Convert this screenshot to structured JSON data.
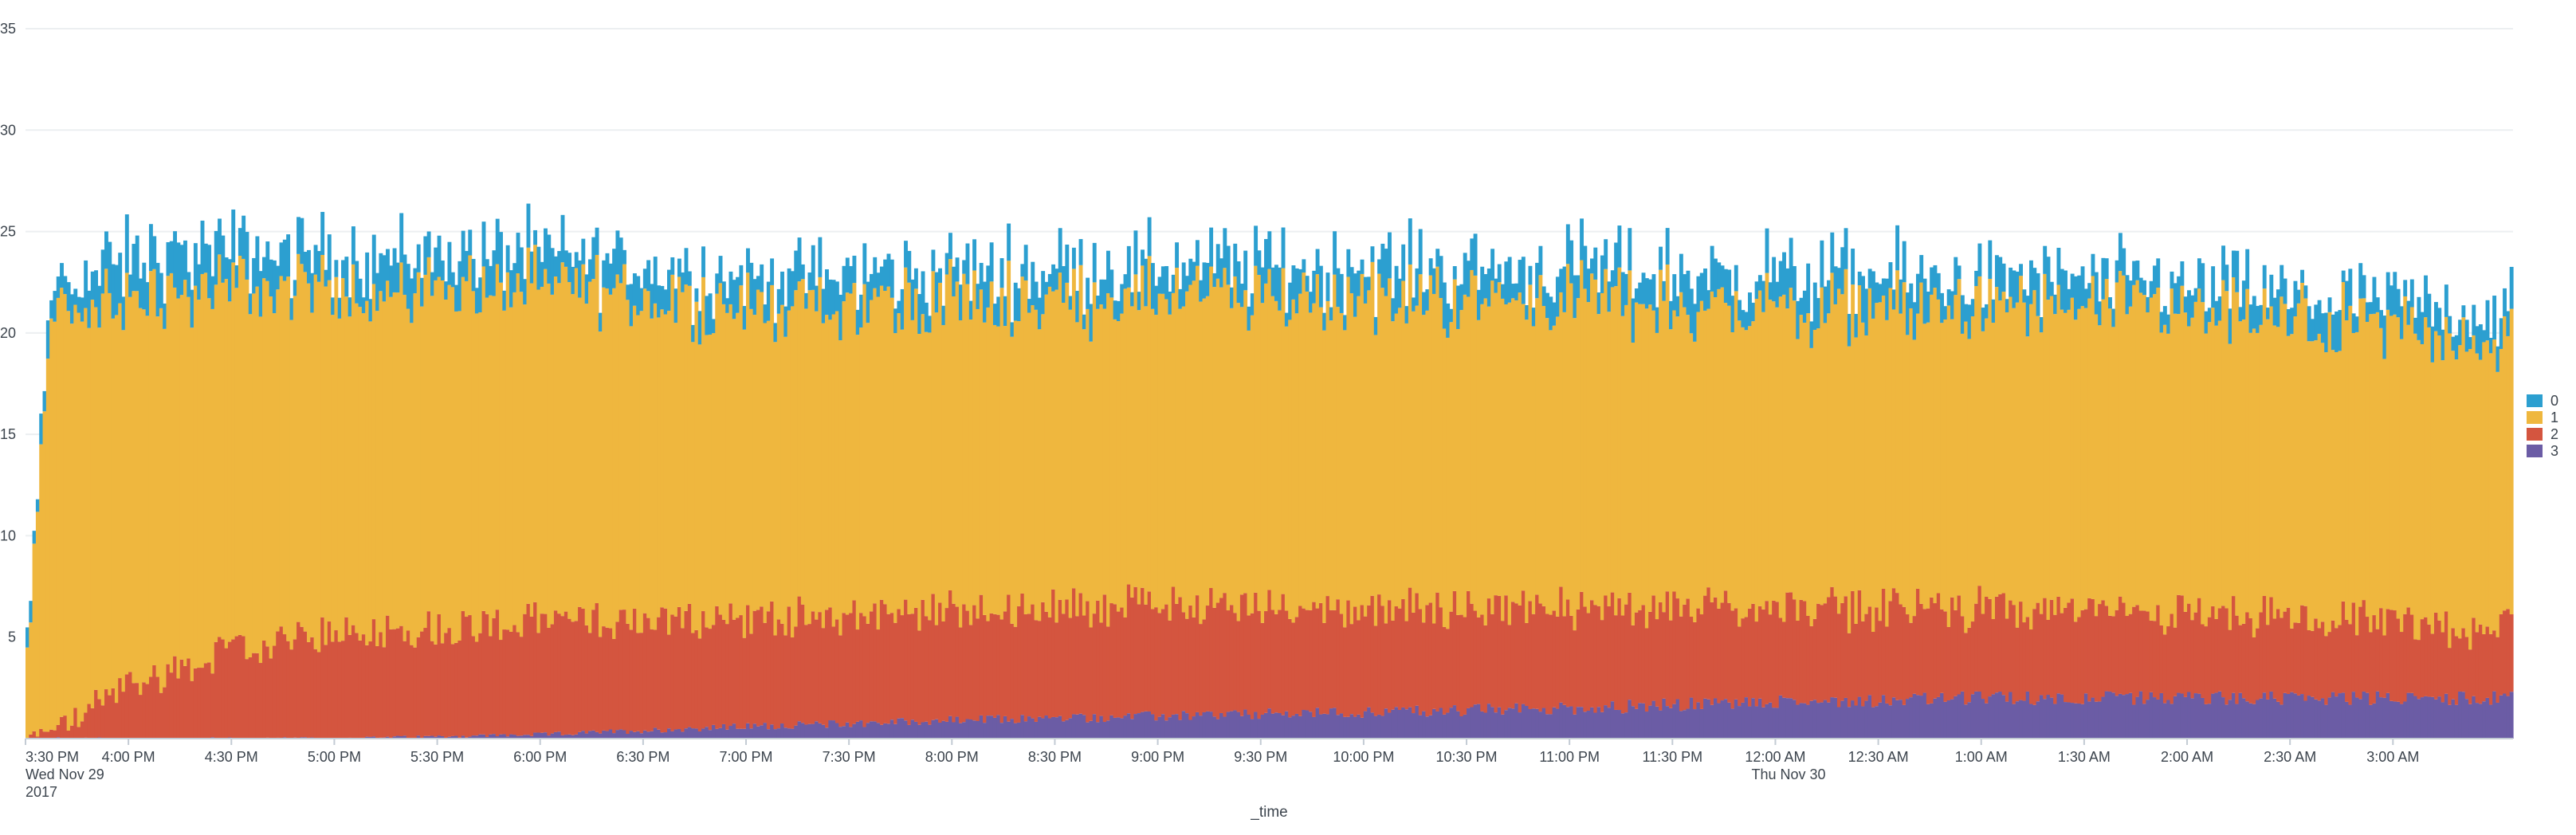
{
  "chart_data": {
    "type": "bar",
    "stacked": true,
    "xlabel": "_time",
    "ylabel": "",
    "ylim": [
      0,
      35
    ],
    "y_ticks": [
      5,
      10,
      15,
      20,
      25,
      30,
      35
    ],
    "grid": "horizontal",
    "legend_position": "right",
    "x_range": [
      "2017-11-29T15:30",
      "2017-11-30T03:35"
    ],
    "x_ticks": [
      {
        "time": "2017-11-29T15:30",
        "lines": [
          "3:30 PM",
          "Wed Nov 29",
          "2017"
        ]
      },
      {
        "time": "2017-11-29T16:00",
        "lines": [
          "4:00 PM"
        ]
      },
      {
        "time": "2017-11-29T16:30",
        "lines": [
          "4:30 PM"
        ]
      },
      {
        "time": "2017-11-29T17:00",
        "lines": [
          "5:00 PM"
        ]
      },
      {
        "time": "2017-11-29T17:30",
        "lines": [
          "5:30 PM"
        ]
      },
      {
        "time": "2017-11-29T18:00",
        "lines": [
          "6:00 PM"
        ]
      },
      {
        "time": "2017-11-29T18:30",
        "lines": [
          "6:30 PM"
        ]
      },
      {
        "time": "2017-11-29T19:00",
        "lines": [
          "7:00 PM"
        ]
      },
      {
        "time": "2017-11-29T19:30",
        "lines": [
          "7:30 PM"
        ]
      },
      {
        "time": "2017-11-29T20:00",
        "lines": [
          "8:00 PM"
        ]
      },
      {
        "time": "2017-11-29T20:30",
        "lines": [
          "8:30 PM"
        ]
      },
      {
        "time": "2017-11-29T21:00",
        "lines": [
          "9:00 PM"
        ]
      },
      {
        "time": "2017-11-29T21:30",
        "lines": [
          "9:30 PM"
        ]
      },
      {
        "time": "2017-11-29T22:00",
        "lines": [
          "10:00 PM"
        ]
      },
      {
        "time": "2017-11-29T22:30",
        "lines": [
          "10:30 PM"
        ]
      },
      {
        "time": "2017-11-29T23:00",
        "lines": [
          "11:00 PM"
        ]
      },
      {
        "time": "2017-11-29T23:30",
        "lines": [
          "11:30 PM"
        ]
      },
      {
        "time": "2017-11-30T00:00",
        "lines": [
          "12:00 AM",
          "Thu Nov 30"
        ]
      },
      {
        "time": "2017-11-30T00:30",
        "lines": [
          "12:30 AM"
        ]
      },
      {
        "time": "2017-11-30T01:00",
        "lines": [
          "1:00 AM"
        ]
      },
      {
        "time": "2017-11-30T01:30",
        "lines": [
          "1:30 AM"
        ]
      },
      {
        "time": "2017-11-30T02:00",
        "lines": [
          "2:00 AM"
        ]
      },
      {
        "time": "2017-11-30T02:30",
        "lines": [
          "2:30 AM"
        ]
      },
      {
        "time": "2017-11-30T03:00",
        "lines": [
          "3:00 AM"
        ]
      }
    ],
    "series": [
      {
        "name": "0",
        "color": "#2c9fd0"
      },
      {
        "name": "1",
        "color": "#efb73e"
      },
      {
        "name": "2",
        "color": "#d4553f"
      },
      {
        "name": "3",
        "color": "#6b5ca5"
      }
    ],
    "stack_order": [
      "3",
      "2",
      "1",
      "0"
    ],
    "series_profiles": {
      "3": {
        "time": [
          "2017-11-29T15:30",
          "2017-11-29T17:00",
          "2017-11-29T18:00",
          "2017-11-29T19:00",
          "2017-11-29T20:00",
          "2017-11-29T21:00",
          "2017-11-29T22:00",
          "2017-11-29T23:00",
          "2017-11-30T00:00",
          "2017-11-30T01:00",
          "2017-11-30T02:00",
          "2017-11-30T03:35"
        ],
        "value": [
          0,
          0,
          0.2,
          0.6,
          0.9,
          1.1,
          1.3,
          1.5,
          1.8,
          2.0,
          2.0,
          2.0
        ]
      },
      "2": {
        "time": [
          "2017-11-29T15:30",
          "2017-11-29T15:45",
          "2017-11-29T16:00",
          "2017-11-29T16:30",
          "2017-11-29T17:00",
          "2017-11-29T18:00",
          "2017-11-29T19:00",
          "2017-11-29T20:00",
          "2017-11-29T21:00",
          "2017-11-29T22:00",
          "2017-11-29T23:00",
          "2017-11-30T00:00",
          "2017-11-30T01:00",
          "2017-11-30T02:00",
          "2017-11-30T03:35"
        ],
        "value": [
          0,
          1.0,
          2.6,
          4.3,
          5.2,
          5.6,
          5.3,
          5.4,
          5.5,
          5.1,
          4.9,
          4.6,
          4.4,
          4.1,
          3.4
        ]
      },
      "1": {
        "time": [
          "2017-11-29T15:30",
          "2017-11-29T15:34",
          "2017-11-29T15:38",
          "2017-11-29T16:00",
          "2017-11-29T17:00",
          "2017-11-29T18:00",
          "2017-11-29T19:00",
          "2017-11-29T20:00",
          "2017-11-29T21:00",
          "2017-11-29T22:00",
          "2017-11-29T23:00",
          "2017-11-30T00:00",
          "2017-11-30T01:00",
          "2017-11-30T02:00",
          "2017-11-30T03:35"
        ],
        "value": [
          3,
          12,
          20.5,
          19.0,
          17.0,
          16.5,
          15.3,
          15.3,
          15.3,
          15.3,
          15.3,
          14.9,
          14.8,
          14.9,
          14.1
        ]
      },
      "0": {
        "time": [
          "2017-11-29T15:30",
          "2017-11-29T15:38",
          "2017-11-29T16:00",
          "2017-11-29T17:00",
          "2017-11-29T18:00",
          "2017-11-29T19:00",
          "2017-11-29T20:00",
          "2017-11-29T21:00",
          "2017-11-29T22:00",
          "2017-11-29T23:00",
          "2017-11-30T00:00",
          "2017-11-30T01:00",
          "2017-11-30T02:00",
          "2017-11-30T03:35"
        ],
        "value": [
          0.5,
          1.5,
          2.0,
          1.6,
          1.6,
          1.5,
          1.4,
          1.5,
          1.5,
          1.5,
          1.6,
          1.4,
          1.3,
          1.4
        ]
      }
    },
    "bucket_minutes": 1
  }
}
